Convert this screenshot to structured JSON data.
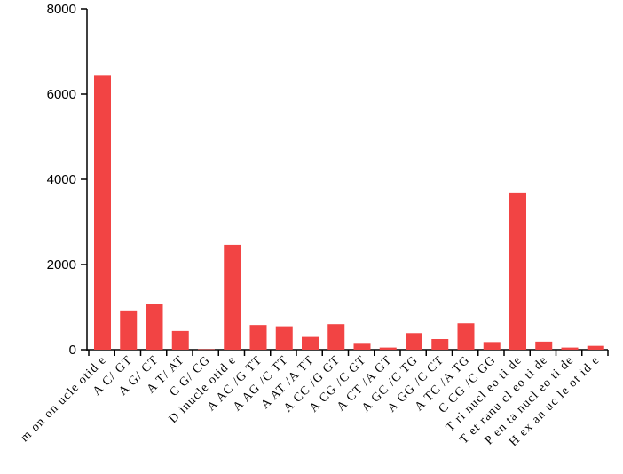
{
  "chart_data": {
    "type": "bar",
    "title": "",
    "xlabel": "",
    "ylabel": "",
    "ylim": [
      0,
      8000
    ],
    "yticks": [
      0,
      2000,
      4000,
      6000,
      8000
    ],
    "ytick_labels": [
      "0",
      "2000",
      "4000",
      "6000",
      "8000"
    ],
    "grid": false,
    "bar_color": "#f24444",
    "categories": [
      "m on on ucle otid e",
      "A C/ GT",
      "A G/ CT",
      "A T/ AT",
      "C G/ CG",
      "D inucle otid e",
      "A AC /G TT",
      "A AG /C TT",
      "A AT /A TT",
      "A CC /G GT",
      "A CG /C GT",
      "A CT /A GT",
      "A GC /C TG",
      "A GG /C CT",
      "A TC /A TG",
      "C CG /C GG",
      "T ri nucl eo ti de",
      "T et ranu cl eo ti de",
      "P en ta nucl eo ti de",
      "H ex an uc le ot id e"
    ],
    "values": [
      6430,
      920,
      1080,
      440,
      10,
      2460,
      580,
      550,
      300,
      600,
      160,
      50,
      390,
      250,
      620,
      180,
      3690,
      190,
      50,
      90
    ]
  }
}
